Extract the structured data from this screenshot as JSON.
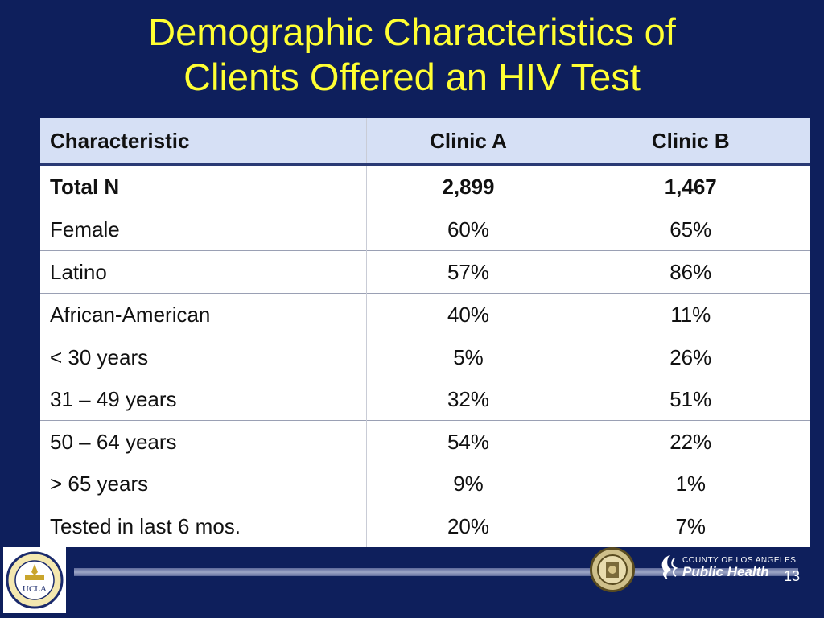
{
  "slide": {
    "title_line1": "Demographic Characteristics of",
    "title_line2": "Clients Offered an HIV Test",
    "page_number": "13"
  },
  "table": {
    "headers": [
      "Characteristic",
      "Clinic A",
      "Clinic B"
    ],
    "rows": [
      [
        "Total N",
        "2,899",
        "1,467"
      ],
      [
        "Female",
        "60%",
        "65%"
      ],
      [
        "Latino",
        "57%",
        "86%"
      ],
      [
        "African-American",
        "40%",
        "11%"
      ],
      [
        "< 30 years",
        "5%",
        "26%"
      ],
      [
        "31 – 49 years",
        "32%",
        "51%"
      ],
      [
        "50 – 64 years",
        "54%",
        "22%"
      ],
      [
        "> 65 years",
        "9%",
        "1%"
      ],
      [
        "Tested in last 6 mos.",
        "20%",
        "7%"
      ]
    ]
  },
  "logos": {
    "ucla_text": "UCLA",
    "ucla_ring_text": "DAVID GEFFEN SCHOOL OF MEDICINE",
    "county_small": "COUNTY OF LOS ANGELES",
    "public_health": "Public Health"
  },
  "colors": {
    "background": "#0e1f5c",
    "title": "#ffff33",
    "header_fill": "#d6e0f5"
  }
}
